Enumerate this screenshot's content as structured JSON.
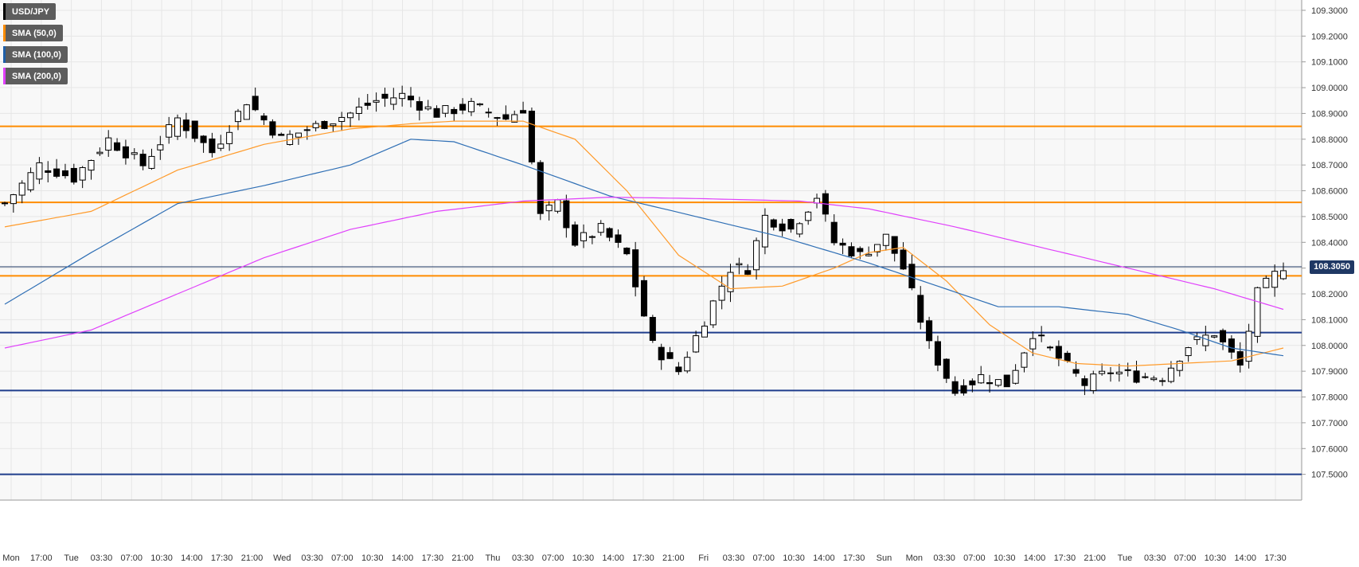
{
  "legend": [
    {
      "label": "USD/JPY",
      "color": "#000000"
    },
    {
      "label": "SMA (50,0)",
      "color": "#ff8c00"
    },
    {
      "label": "SMA (100,0)",
      "color": "#1f5fa8"
    },
    {
      "label": "SMA (200,0)",
      "color": "#e040fb"
    }
  ],
  "last_price_label": "108.3050",
  "colors": {
    "background": "#f8f8f8",
    "grid": "#e6e6e6",
    "resistance": "#ff8c00",
    "support": "#1f3d8c",
    "sma50": "#ff9b2b",
    "sma100": "#2f6fb5",
    "sma200": "#e040fb",
    "bull": "#ffffff",
    "bear": "#000000"
  },
  "chart_data": {
    "type": "candlestick",
    "title": "",
    "ylim": [
      107.4,
      109.34
    ],
    "yticks": [
      "109.3000",
      "109.2000",
      "109.1000",
      "109.0000",
      "108.9000",
      "108.8000",
      "108.7000",
      "108.6000",
      "108.5000",
      "108.4000",
      "108.3000",
      "108.2000",
      "108.1000",
      "108.0000",
      "107.9000",
      "107.8000",
      "107.7000",
      "107.6000",
      "107.5000"
    ],
    "xticks": [
      "Mon",
      "17:00",
      "Tue",
      "03:30",
      "07:00",
      "10:30",
      "14:00",
      "17:30",
      "21:00",
      "Wed",
      "03:30",
      "07:00",
      "10:30",
      "14:00",
      "17:30",
      "21:00",
      "Thu",
      "03:30",
      "07:00",
      "10:30",
      "14:00",
      "17:30",
      "21:00",
      "Fri",
      "03:30",
      "07:00",
      "10:30",
      "14:00",
      "17:30",
      "Sun",
      "Mon",
      "03:30",
      "07:00",
      "10:30",
      "14:00",
      "17:30",
      "21:00",
      "Tue",
      "03:30",
      "07:00",
      "10:30",
      "14:00",
      "17:30"
    ],
    "horizontal_levels": [
      {
        "value": 108.85,
        "kind": "resistance"
      },
      {
        "value": 108.555,
        "kind": "resistance"
      },
      {
        "value": 108.27,
        "kind": "resistance"
      },
      {
        "value": 108.305,
        "kind": "last-price"
      },
      {
        "value": 108.05,
        "kind": "support"
      },
      {
        "value": 107.825,
        "kind": "support"
      },
      {
        "value": 107.5,
        "kind": "support"
      }
    ],
    "price_path": [
      [
        0,
        108.55
      ],
      [
        4,
        108.7
      ],
      [
        8,
        108.65
      ],
      [
        12,
        108.8
      ],
      [
        16,
        108.7
      ],
      [
        20,
        108.88
      ],
      [
        24,
        108.75
      ],
      [
        28,
        108.95
      ],
      [
        32,
        108.8
      ],
      [
        36,
        108.85
      ],
      [
        40,
        108.9
      ],
      [
        43,
        108.95
      ],
      [
        46,
        108.97
      ],
      [
        50,
        108.9
      ],
      [
        54,
        108.93
      ],
      [
        58,
        108.88
      ],
      [
        60,
        108.92
      ],
      [
        62,
        108.5
      ],
      [
        64,
        108.55
      ],
      [
        66,
        108.4
      ],
      [
        69,
        108.45
      ],
      [
        72,
        108.35
      ],
      [
        75,
        108.0
      ],
      [
        78,
        107.9
      ],
      [
        81,
        108.1
      ],
      [
        84,
        108.3
      ],
      [
        86,
        108.3
      ],
      [
        88,
        108.5
      ],
      [
        91,
        108.45
      ],
      [
        94,
        108.58
      ],
      [
        96,
        108.4
      ],
      [
        99,
        108.35
      ],
      [
        102,
        108.42
      ],
      [
        104,
        108.3
      ],
      [
        107,
        108.0
      ],
      [
        110,
        107.82
      ],
      [
        113,
        107.88
      ],
      [
        116,
        107.85
      ],
      [
        119,
        108.05
      ],
      [
        122,
        107.95
      ],
      [
        125,
        107.85
      ],
      [
        128,
        107.9
      ],
      [
        131,
        107.88
      ],
      [
        134,
        107.88
      ],
      [
        137,
        108.0
      ],
      [
        140,
        108.05
      ],
      [
        143,
        107.92
      ],
      [
        145,
        108.2
      ],
      [
        148,
        108.31
      ]
    ],
    "sma50_path": [
      [
        0,
        108.46
      ],
      [
        10,
        108.52
      ],
      [
        20,
        108.68
      ],
      [
        30,
        108.78
      ],
      [
        40,
        108.84
      ],
      [
        47,
        108.86
      ],
      [
        52,
        108.87
      ],
      [
        60,
        108.87
      ],
      [
        66,
        108.8
      ],
      [
        72,
        108.6
      ],
      [
        78,
        108.35
      ],
      [
        84,
        108.22
      ],
      [
        90,
        108.23
      ],
      [
        96,
        108.3
      ],
      [
        100,
        108.36
      ],
      [
        104,
        108.38
      ],
      [
        109,
        108.25
      ],
      [
        114,
        108.08
      ],
      [
        119,
        107.97
      ],
      [
        124,
        107.93
      ],
      [
        130,
        107.92
      ],
      [
        136,
        107.93
      ],
      [
        142,
        107.94
      ],
      [
        148,
        107.99
      ]
    ],
    "sma100_path": [
      [
        0,
        108.16
      ],
      [
        10,
        108.36
      ],
      [
        20,
        108.55
      ],
      [
        30,
        108.62
      ],
      [
        40,
        108.7
      ],
      [
        47,
        108.8
      ],
      [
        52,
        108.79
      ],
      [
        60,
        108.7
      ],
      [
        70,
        108.58
      ],
      [
        80,
        108.5
      ],
      [
        90,
        108.42
      ],
      [
        100,
        108.32
      ],
      [
        108,
        108.23
      ],
      [
        115,
        108.15
      ],
      [
        122,
        108.15
      ],
      [
        130,
        108.12
      ],
      [
        136,
        108.06
      ],
      [
        142,
        107.99
      ],
      [
        148,
        107.96
      ]
    ],
    "sma200_path": [
      [
        0,
        107.99
      ],
      [
        10,
        108.06
      ],
      [
        20,
        108.2
      ],
      [
        30,
        108.34
      ],
      [
        40,
        108.45
      ],
      [
        50,
        108.52
      ],
      [
        60,
        108.56
      ],
      [
        70,
        108.575
      ],
      [
        80,
        108.57
      ],
      [
        92,
        108.56
      ],
      [
        100,
        108.53
      ],
      [
        110,
        108.46
      ],
      [
        120,
        108.38
      ],
      [
        130,
        108.3
      ],
      [
        140,
        108.22
      ],
      [
        148,
        108.14
      ]
    ]
  }
}
